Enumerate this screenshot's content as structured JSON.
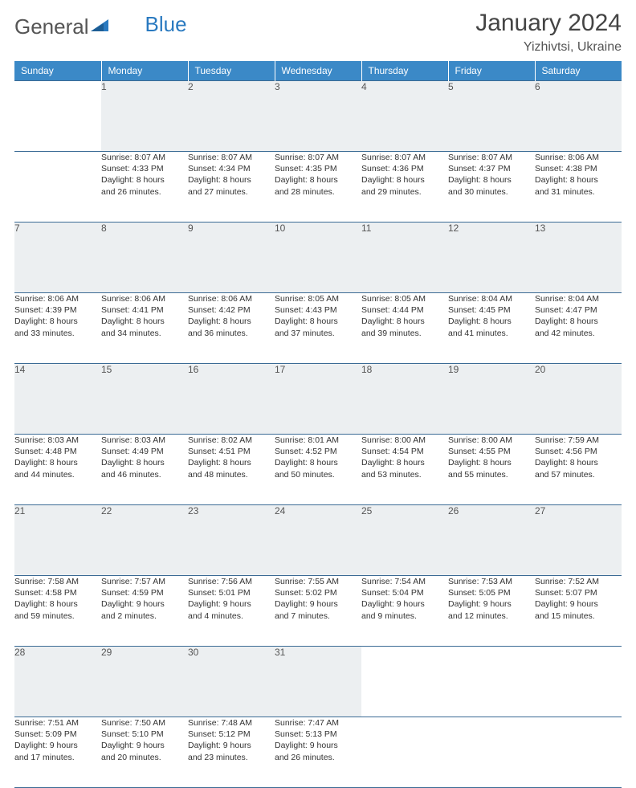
{
  "brand": {
    "text1": "General",
    "text2": "Blue"
  },
  "header": {
    "title": "January 2024",
    "location": "Yizhivtsi, Ukraine"
  },
  "colors": {
    "header_bg": "#3b89c7",
    "header_fg": "#ffffff",
    "daynum_bg": "#eceff1",
    "rule": "#3b6b95",
    "logo_blue": "#2a7ac0"
  },
  "weekdays": [
    "Sunday",
    "Monday",
    "Tuesday",
    "Wednesday",
    "Thursday",
    "Friday",
    "Saturday"
  ],
  "weeks": [
    {
      "nums": [
        "",
        "1",
        "2",
        "3",
        "4",
        "5",
        "6"
      ],
      "cells": [
        {
          "empty": true
        },
        {
          "sr": "Sunrise: 8:07 AM",
          "ss": "Sunset: 4:33 PM",
          "d1": "Daylight: 8 hours",
          "d2": "and 26 minutes."
        },
        {
          "sr": "Sunrise: 8:07 AM",
          "ss": "Sunset: 4:34 PM",
          "d1": "Daylight: 8 hours",
          "d2": "and 27 minutes."
        },
        {
          "sr": "Sunrise: 8:07 AM",
          "ss": "Sunset: 4:35 PM",
          "d1": "Daylight: 8 hours",
          "d2": "and 28 minutes."
        },
        {
          "sr": "Sunrise: 8:07 AM",
          "ss": "Sunset: 4:36 PM",
          "d1": "Daylight: 8 hours",
          "d2": "and 29 minutes."
        },
        {
          "sr": "Sunrise: 8:07 AM",
          "ss": "Sunset: 4:37 PM",
          "d1": "Daylight: 8 hours",
          "d2": "and 30 minutes."
        },
        {
          "sr": "Sunrise: 8:06 AM",
          "ss": "Sunset: 4:38 PM",
          "d1": "Daylight: 8 hours",
          "d2": "and 31 minutes."
        }
      ]
    },
    {
      "nums": [
        "7",
        "8",
        "9",
        "10",
        "11",
        "12",
        "13"
      ],
      "cells": [
        {
          "sr": "Sunrise: 8:06 AM",
          "ss": "Sunset: 4:39 PM",
          "d1": "Daylight: 8 hours",
          "d2": "and 33 minutes."
        },
        {
          "sr": "Sunrise: 8:06 AM",
          "ss": "Sunset: 4:41 PM",
          "d1": "Daylight: 8 hours",
          "d2": "and 34 minutes."
        },
        {
          "sr": "Sunrise: 8:06 AM",
          "ss": "Sunset: 4:42 PM",
          "d1": "Daylight: 8 hours",
          "d2": "and 36 minutes."
        },
        {
          "sr": "Sunrise: 8:05 AM",
          "ss": "Sunset: 4:43 PM",
          "d1": "Daylight: 8 hours",
          "d2": "and 37 minutes."
        },
        {
          "sr": "Sunrise: 8:05 AM",
          "ss": "Sunset: 4:44 PM",
          "d1": "Daylight: 8 hours",
          "d2": "and 39 minutes."
        },
        {
          "sr": "Sunrise: 8:04 AM",
          "ss": "Sunset: 4:45 PM",
          "d1": "Daylight: 8 hours",
          "d2": "and 41 minutes."
        },
        {
          "sr": "Sunrise: 8:04 AM",
          "ss": "Sunset: 4:47 PM",
          "d1": "Daylight: 8 hours",
          "d2": "and 42 minutes."
        }
      ]
    },
    {
      "nums": [
        "14",
        "15",
        "16",
        "17",
        "18",
        "19",
        "20"
      ],
      "cells": [
        {
          "sr": "Sunrise: 8:03 AM",
          "ss": "Sunset: 4:48 PM",
          "d1": "Daylight: 8 hours",
          "d2": "and 44 minutes."
        },
        {
          "sr": "Sunrise: 8:03 AM",
          "ss": "Sunset: 4:49 PM",
          "d1": "Daylight: 8 hours",
          "d2": "and 46 minutes."
        },
        {
          "sr": "Sunrise: 8:02 AM",
          "ss": "Sunset: 4:51 PM",
          "d1": "Daylight: 8 hours",
          "d2": "and 48 minutes."
        },
        {
          "sr": "Sunrise: 8:01 AM",
          "ss": "Sunset: 4:52 PM",
          "d1": "Daylight: 8 hours",
          "d2": "and 50 minutes."
        },
        {
          "sr": "Sunrise: 8:00 AM",
          "ss": "Sunset: 4:54 PM",
          "d1": "Daylight: 8 hours",
          "d2": "and 53 minutes."
        },
        {
          "sr": "Sunrise: 8:00 AM",
          "ss": "Sunset: 4:55 PM",
          "d1": "Daylight: 8 hours",
          "d2": "and 55 minutes."
        },
        {
          "sr": "Sunrise: 7:59 AM",
          "ss": "Sunset: 4:56 PM",
          "d1": "Daylight: 8 hours",
          "d2": "and 57 minutes."
        }
      ]
    },
    {
      "nums": [
        "21",
        "22",
        "23",
        "24",
        "25",
        "26",
        "27"
      ],
      "cells": [
        {
          "sr": "Sunrise: 7:58 AM",
          "ss": "Sunset: 4:58 PM",
          "d1": "Daylight: 8 hours",
          "d2": "and 59 minutes."
        },
        {
          "sr": "Sunrise: 7:57 AM",
          "ss": "Sunset: 4:59 PM",
          "d1": "Daylight: 9 hours",
          "d2": "and 2 minutes."
        },
        {
          "sr": "Sunrise: 7:56 AM",
          "ss": "Sunset: 5:01 PM",
          "d1": "Daylight: 9 hours",
          "d2": "and 4 minutes."
        },
        {
          "sr": "Sunrise: 7:55 AM",
          "ss": "Sunset: 5:02 PM",
          "d1": "Daylight: 9 hours",
          "d2": "and 7 minutes."
        },
        {
          "sr": "Sunrise: 7:54 AM",
          "ss": "Sunset: 5:04 PM",
          "d1": "Daylight: 9 hours",
          "d2": "and 9 minutes."
        },
        {
          "sr": "Sunrise: 7:53 AM",
          "ss": "Sunset: 5:05 PM",
          "d1": "Daylight: 9 hours",
          "d2": "and 12 minutes."
        },
        {
          "sr": "Sunrise: 7:52 AM",
          "ss": "Sunset: 5:07 PM",
          "d1": "Daylight: 9 hours",
          "d2": "and 15 minutes."
        }
      ]
    },
    {
      "nums": [
        "28",
        "29",
        "30",
        "31",
        "",
        "",
        ""
      ],
      "cells": [
        {
          "sr": "Sunrise: 7:51 AM",
          "ss": "Sunset: 5:09 PM",
          "d1": "Daylight: 9 hours",
          "d2": "and 17 minutes."
        },
        {
          "sr": "Sunrise: 7:50 AM",
          "ss": "Sunset: 5:10 PM",
          "d1": "Daylight: 9 hours",
          "d2": "and 20 minutes."
        },
        {
          "sr": "Sunrise: 7:48 AM",
          "ss": "Sunset: 5:12 PM",
          "d1": "Daylight: 9 hours",
          "d2": "and 23 minutes."
        },
        {
          "sr": "Sunrise: 7:47 AM",
          "ss": "Sunset: 5:13 PM",
          "d1": "Daylight: 9 hours",
          "d2": "and 26 minutes."
        },
        {
          "empty": true
        },
        {
          "empty": true
        },
        {
          "empty": true
        }
      ]
    }
  ]
}
